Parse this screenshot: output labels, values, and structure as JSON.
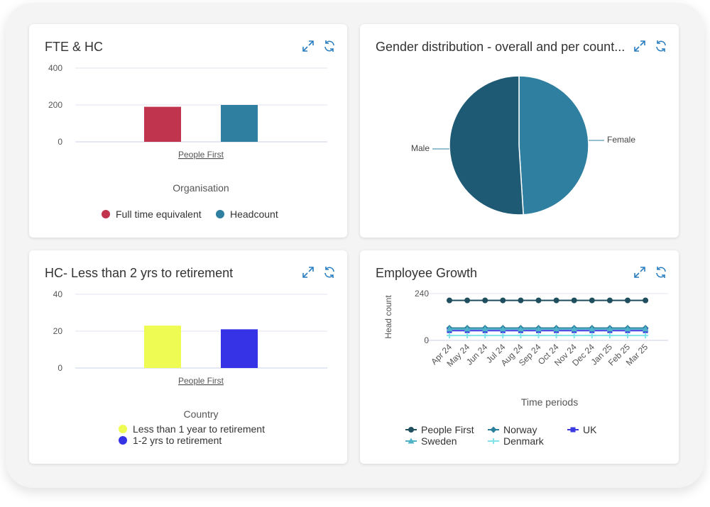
{
  "colors": {
    "red": "#c0354d",
    "teal": "#2e7fa0",
    "dark_teal": "#1f5a75",
    "yellow": "#eefb52",
    "blue": "#3633e6",
    "icon": "#2b7fc0"
  },
  "cards": {
    "fte": {
      "title": "FTE & HC",
      "xlabel": "Organisation"
    },
    "gender": {
      "title": "Gender distribution - overall and per count..."
    },
    "retire": {
      "title": "HC- Less than 2 yrs to retirement",
      "xlabel": "Country"
    },
    "growth": {
      "title": "Employee Growth",
      "xlabel": "Time periods",
      "ylabel": "Head count"
    }
  },
  "chart_data": [
    {
      "type": "bar",
      "categories": [
        "People First"
      ],
      "series": [
        {
          "name": "Full time equivalent",
          "values": [
            190
          ]
        },
        {
          "name": "Headcount",
          "values": [
            200
          ]
        }
      ],
      "xlabel": "Organisation",
      "yticks": [
        0,
        200,
        400
      ],
      "ylim": [
        0,
        400
      ],
      "legend": "bottom"
    },
    {
      "type": "pie",
      "labels": [
        "Male",
        "Female"
      ],
      "values": [
        51,
        49
      ]
    },
    {
      "type": "bar",
      "categories": [
        "People First"
      ],
      "series": [
        {
          "name": "Less than 1 year to retirement",
          "values": [
            23
          ]
        },
        {
          "name": "1-2 yrs to retirement",
          "values": [
            21
          ]
        }
      ],
      "xlabel": "Country",
      "yticks": [
        0,
        20,
        40
      ],
      "ylim": [
        0,
        40
      ],
      "legend": "bottom"
    },
    {
      "type": "line",
      "x": [
        "Apr 24",
        "May 24",
        "Jun 24",
        "Jul 24",
        "Aug 24",
        "Sep 24",
        "Oct 24",
        "Nov 24",
        "Dec 24",
        "Jan 25",
        "Feb 25",
        "Mar 25"
      ],
      "series": [
        {
          "name": "People First",
          "values": [
            205,
            205,
            205,
            205,
            205,
            205,
            205,
            205,
            205,
            205,
            205,
            205
          ]
        },
        {
          "name": "Norway",
          "values": [
            63,
            63,
            63,
            63,
            63,
            63,
            63,
            63,
            63,
            63,
            63,
            63
          ]
        },
        {
          "name": "UK",
          "values": [
            50,
            50,
            50,
            50,
            50,
            50,
            50,
            50,
            50,
            50,
            50,
            50
          ]
        },
        {
          "name": "Sweden",
          "values": [
            58,
            58,
            58,
            58,
            58,
            58,
            58,
            58,
            58,
            58,
            58,
            58
          ]
        },
        {
          "name": "Denmark",
          "values": [
            25,
            25,
            25,
            25,
            25,
            25,
            25,
            25,
            25,
            25,
            25,
            25
          ]
        }
      ],
      "xlabel": "Time periods",
      "ylabel": "Head count",
      "yticks": [
        0,
        240
      ],
      "ylim": [
        0,
        240
      ],
      "legend": "bottom"
    }
  ]
}
